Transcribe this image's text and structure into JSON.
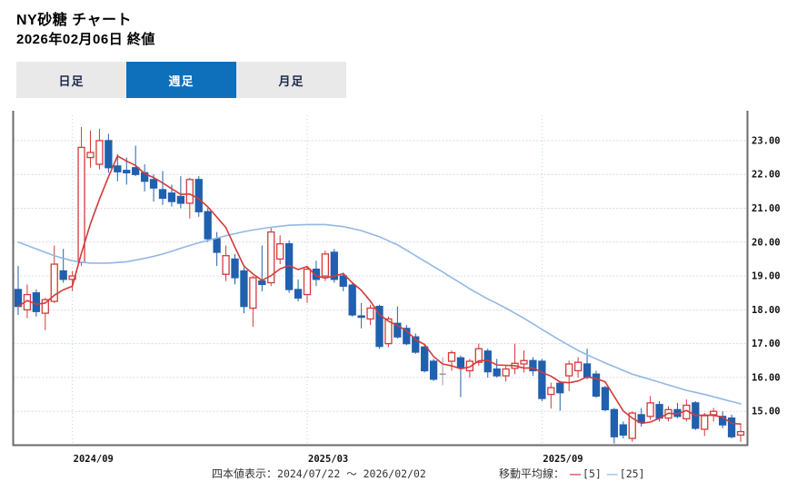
{
  "header": {
    "title": "NY砂糖 チャート",
    "subtitle": "2026年02月06日 終値"
  },
  "tabs": [
    {
      "label": "日足",
      "active": false
    },
    {
      "label": "週足",
      "active": true
    },
    {
      "label": "月足",
      "active": false
    }
  ],
  "footer": {
    "ohlc_label": "四本値表示：",
    "range": "2024/07/22 ～ 2026/02/02",
    "ma_label": "移動平均線：",
    "dash": "―",
    "ma5": "[5]",
    "ma25": "[25]"
  },
  "chart_data": {
    "type": "candlestick",
    "period": "weekly",
    "period_start": "2024/07/22",
    "period_end": "2026/02/02",
    "ylim": [
      14.0,
      23.83
    ],
    "y_ticks": [
      15,
      16,
      17,
      18,
      19,
      20,
      21,
      22,
      23
    ],
    "y_tick_labels": [
      "15.00",
      "16.00",
      "17.00",
      "18.00",
      "19.00",
      "20.00",
      "21.00",
      "22.00",
      "23.00"
    ],
    "x_ticks": [
      {
        "label": "2024/09",
        "index": 6
      },
      {
        "label": "2025/03",
        "index": 32
      },
      {
        "label": "2025/09",
        "index": 58
      }
    ],
    "grid": true,
    "legend_position": "bottom",
    "series": [
      {
        "name": "[5]",
        "type": "sma",
        "window": 5,
        "color": "#d23b3b"
      },
      {
        "name": "[25]",
        "type": "sma",
        "window": 25,
        "color": "#92b8e4"
      }
    ],
    "candles": [
      [
        18.6,
        19.3,
        17.85,
        18.1
      ],
      [
        18.0,
        18.75,
        17.75,
        18.45
      ],
      [
        18.5,
        18.6,
        17.8,
        17.95
      ],
      [
        17.9,
        18.35,
        17.4,
        18.3
      ],
      [
        18.25,
        19.9,
        18.2,
        19.35
      ],
      [
        19.15,
        19.8,
        18.8,
        18.9
      ],
      [
        18.9,
        19.15,
        18.55,
        19.0
      ],
      [
        19.4,
        23.4,
        19.3,
        22.8
      ],
      [
        22.5,
        23.3,
        22.2,
        22.65
      ],
      [
        22.3,
        23.35,
        22.15,
        23.0
      ],
      [
        23.0,
        23.2,
        22.05,
        22.2
      ],
      [
        22.25,
        22.6,
        21.8,
        22.08
      ],
      [
        22.12,
        22.5,
        21.7,
        22.05
      ],
      [
        22.2,
        22.85,
        21.95,
        22.0
      ],
      [
        22.05,
        22.3,
        21.5,
        21.8
      ],
      [
        21.85,
        22.0,
        21.2,
        21.6
      ],
      [
        21.55,
        22.1,
        21.1,
        21.3
      ],
      [
        21.45,
        21.7,
        21.05,
        21.2
      ],
      [
        21.35,
        21.95,
        21.0,
        21.15
      ],
      [
        21.15,
        21.9,
        20.7,
        21.85
      ],
      [
        21.85,
        21.95,
        20.75,
        20.9
      ],
      [
        20.9,
        21.0,
        20.0,
        20.1
      ],
      [
        20.1,
        20.3,
        19.3,
        19.7
      ],
      [
        19.05,
        19.9,
        18.85,
        19.6
      ],
      [
        19.5,
        19.65,
        18.75,
        18.95
      ],
      [
        19.15,
        19.25,
        17.9,
        18.1
      ],
      [
        18.05,
        19.0,
        17.5,
        18.95
      ],
      [
        18.85,
        19.9,
        18.55,
        18.75
      ],
      [
        18.8,
        20.45,
        18.7,
        20.3
      ],
      [
        19.5,
        20.2,
        19.35,
        19.95
      ],
      [
        19.95,
        20.05,
        18.5,
        18.6
      ],
      [
        18.6,
        18.9,
        18.25,
        18.35
      ],
      [
        18.45,
        19.3,
        18.2,
        19.2
      ],
      [
        19.2,
        19.45,
        18.7,
        18.9
      ],
      [
        19.0,
        19.75,
        18.85,
        19.65
      ],
      [
        19.7,
        19.8,
        18.8,
        18.9
      ],
      [
        19.0,
        19.1,
        18.55,
        18.7
      ],
      [
        18.73,
        18.8,
        17.8,
        17.85
      ],
      [
        17.82,
        18.2,
        17.45,
        17.78
      ],
      [
        17.73,
        18.15,
        17.55,
        18.05
      ],
      [
        18.1,
        18.15,
        16.85,
        16.92
      ],
      [
        17.0,
        17.8,
        16.9,
        17.73
      ],
      [
        17.6,
        18.1,
        17.15,
        17.2
      ],
      [
        17.45,
        17.55,
        16.95,
        17.0
      ],
      [
        17.2,
        17.3,
        16.7,
        16.75
      ],
      [
        16.9,
        16.95,
        16.15,
        16.2
      ],
      [
        16.48,
        16.55,
        15.9,
        15.95
      ],
      [
        16.1,
        16.6,
        15.77,
        16.1
      ],
      [
        16.48,
        16.8,
        16.2,
        16.73
      ],
      [
        16.58,
        16.65,
        15.42,
        16.3
      ],
      [
        16.2,
        16.55,
        16.0,
        16.48
      ],
      [
        16.45,
        17.0,
        16.35,
        16.85
      ],
      [
        16.78,
        16.85,
        16.0,
        16.17
      ],
      [
        16.25,
        16.55,
        16.0,
        16.05
      ],
      [
        16.05,
        16.35,
        15.88,
        16.25
      ],
      [
        16.27,
        17.0,
        16.1,
        16.42
      ],
      [
        16.4,
        16.8,
        16.15,
        16.5
      ],
      [
        16.5,
        16.6,
        16.05,
        16.2
      ],
      [
        16.48,
        16.55,
        15.3,
        15.38
      ],
      [
        15.5,
        15.85,
        15.08,
        15.7
      ],
      [
        15.83,
        15.9,
        15.02,
        15.55
      ],
      [
        16.05,
        16.5,
        15.6,
        16.4
      ],
      [
        16.2,
        16.6,
        16.0,
        16.45
      ],
      [
        16.4,
        16.85,
        15.95,
        16.0
      ],
      [
        16.1,
        16.2,
        15.4,
        15.45
      ],
      [
        15.7,
        15.75,
        15.0,
        15.05
      ],
      [
        15.05,
        15.1,
        14.05,
        14.25
      ],
      [
        14.6,
        14.7,
        14.2,
        14.3
      ],
      [
        14.2,
        15.0,
        14.1,
        14.95
      ],
      [
        14.9,
        15.1,
        14.55,
        14.67
      ],
      [
        14.85,
        15.45,
        14.75,
        15.25
      ],
      [
        15.2,
        15.3,
        14.7,
        14.8
      ],
      [
        14.8,
        15.15,
        14.7,
        15.05
      ],
      [
        15.05,
        15.25,
        14.8,
        14.85
      ],
      [
        14.78,
        15.35,
        14.7,
        15.18
      ],
      [
        15.25,
        15.3,
        14.45,
        14.5
      ],
      [
        14.47,
        14.95,
        14.27,
        14.87
      ],
      [
        14.9,
        15.1,
        14.7,
        15.0
      ],
      [
        14.85,
        15.0,
        14.5,
        14.6
      ],
      [
        14.8,
        14.9,
        14.2,
        14.25
      ],
      [
        14.3,
        14.6,
        14.1,
        14.4
      ]
    ],
    "ma25": [
      20.0,
      19.9,
      19.8,
      19.7,
      19.6,
      19.52,
      19.45,
      19.41,
      19.38,
      19.38,
      19.38,
      19.4,
      19.42,
      19.47,
      19.52,
      19.58,
      19.65,
      19.73,
      19.82,
      19.9,
      19.98,
      20.05,
      20.12,
      20.19,
      20.25,
      20.31,
      20.36,
      20.4,
      20.44,
      20.47,
      20.5,
      20.51,
      20.52,
      20.52,
      20.52,
      20.49,
      20.46,
      20.4,
      20.34,
      20.25,
      20.16,
      20.04,
      19.92,
      19.76,
      19.6,
      19.44,
      19.28,
      19.12,
      18.95,
      18.79,
      18.62,
      18.47,
      18.32,
      18.19,
      18.05,
      17.9,
      17.75,
      17.59,
      17.42,
      17.26,
      17.1,
      16.95,
      16.8,
      16.67,
      16.55,
      16.43,
      16.32,
      16.21,
      16.1,
      16.02,
      15.94,
      15.86,
      15.78,
      15.7,
      15.62,
      15.56,
      15.5,
      15.43,
      15.36,
      15.29,
      15.22
    ],
    "colors": {
      "up": "#d23b3b",
      "down": "#2060ae",
      "doji": "#9e9e9e",
      "ma5": "#d23b3b",
      "ma25": "#92b8e4",
      "hgrid": "#d4d9e2",
      "vgrid": "#bcd2e8",
      "axis": "#6b6b6b",
      "tick_label": "#111111",
      "tab_active_bg": "#0e6fba",
      "tab_bg": "#e9e9e9"
    }
  }
}
